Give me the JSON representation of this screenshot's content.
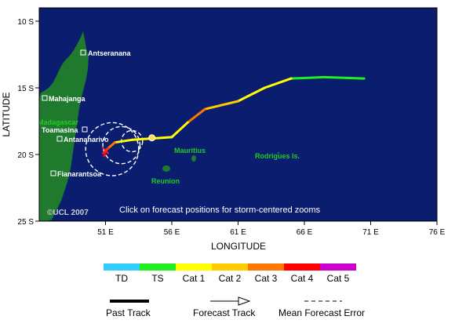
{
  "map": {
    "background_color": "#0a1d6e",
    "land_color": "#1f7a2e",
    "axes": {
      "x_title": "LONGITUDE",
      "y_title": "LATITUDE",
      "x_ticks": [
        "51 E",
        "56 E",
        "61 E",
        "66 E",
        "71 E",
        "76 E"
      ],
      "y_ticks": [
        "10 S",
        "15 S",
        "20 S",
        "25 S"
      ]
    },
    "places": [
      {
        "name": "Antseranana",
        "style": "white",
        "marker": true
      },
      {
        "name": "Mahajanga",
        "style": "white",
        "marker": true
      },
      {
        "name": "Madagascar",
        "style": "green",
        "marker": false
      },
      {
        "name": "Toamasina",
        "style": "white",
        "marker": true
      },
      {
        "name": "Antananarivo",
        "style": "white",
        "marker": true
      },
      {
        "name": "Fianarantsoa",
        "style": "white",
        "marker": true
      },
      {
        "name": "Mauritius",
        "style": "green",
        "marker": false
      },
      {
        "name": "Reunion",
        "style": "green",
        "marker": false
      },
      {
        "name": "Rodrigues Is.",
        "style": "green",
        "marker": false
      }
    ],
    "copyright": "©UCL 2007",
    "note": "Click on forecast positions for storm-centered zooms",
    "track_points": [
      {
        "lon": 70.5,
        "lat": 14.3,
        "category": "TS"
      },
      {
        "lon": 67.5,
        "lat": 14.2,
        "category": "TS"
      },
      {
        "lon": 65.0,
        "lat": 14.3,
        "category": "TS"
      },
      {
        "lon": 63.0,
        "lat": 15.0,
        "category": "Cat 1"
      },
      {
        "lon": 61.0,
        "lat": 16.0,
        "category": "Cat 1"
      },
      {
        "lon": 58.5,
        "lat": 16.6,
        "category": "Cat 2"
      },
      {
        "lon": 57.2,
        "lat": 17.6,
        "category": "Cat 3"
      },
      {
        "lon": 56.0,
        "lat": 18.7,
        "category": "Cat 1"
      },
      {
        "lon": 54.5,
        "lat": 18.8,
        "category": "Cat 1"
      },
      {
        "lon": 53.0,
        "lat": 18.9,
        "category": "Cat 1"
      },
      {
        "lon": 51.7,
        "lat": 19.1,
        "category": "Cat 1"
      },
      {
        "lon": 51.0,
        "lat": 19.7,
        "category": "Cat 3"
      },
      {
        "lon": 50.9,
        "lat": 20.1,
        "category": "Cat 4"
      }
    ],
    "current_position": {
      "lon": 54.5,
      "lat": 18.75
    },
    "forecast_error_circles": [
      {
        "lon": 53.0,
        "lat": 19.0,
        "radius_deg": 0.8
      },
      {
        "lon": 52.2,
        "lat": 19.3,
        "radius_deg": 1.4
      },
      {
        "lon": 51.5,
        "lat": 19.6,
        "radius_deg": 2.0
      }
    ]
  },
  "legend": {
    "categories": [
      {
        "label": "TD",
        "color": "#33ccff"
      },
      {
        "label": "TS",
        "color": "#22ee22"
      },
      {
        "label": "Cat 1",
        "color": "#ffff00"
      },
      {
        "label": "Cat 2",
        "color": "#ffcc00"
      },
      {
        "label": "Cat 3",
        "color": "#ff7700"
      },
      {
        "label": "Cat 4",
        "color": "#ff0000"
      },
      {
        "label": "Cat 5",
        "color": "#cc00cc"
      }
    ],
    "keys": {
      "past_track": "Past Track",
      "forecast_track": "Forecast Track",
      "mean_error": "Mean Forecast Error"
    }
  }
}
